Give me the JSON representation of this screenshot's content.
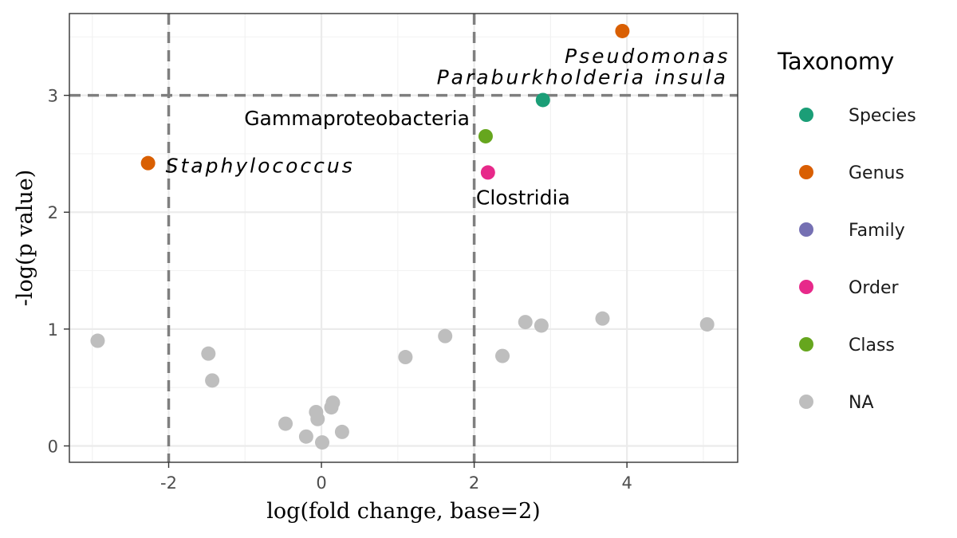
{
  "chart_data": {
    "type": "scatter",
    "title": "",
    "xlabel": "log(fold change, base=2)",
    "ylabel": "-log(p value)",
    "xlim": [
      -3.3,
      5.45
    ],
    "ylim": [
      -0.14,
      3.7
    ],
    "x_ticks": [
      -2,
      0,
      2,
      4
    ],
    "y_ticks": [
      0,
      1,
      2,
      3
    ],
    "grid": true,
    "thresholds": {
      "x": [
        -2,
        2
      ],
      "y": [
        3
      ]
    },
    "legend": {
      "title": "Taxonomy",
      "position": "right",
      "entries": [
        {
          "label": "Species",
          "color": "#1b9e77"
        },
        {
          "label": "Genus",
          "color": "#d95f02"
        },
        {
          "label": "Family",
          "color": "#7570b3"
        },
        {
          "label": "Order",
          "color": "#e7298a"
        },
        {
          "label": "Class",
          "color": "#66a61e"
        },
        {
          "label": "NA",
          "color": "#bebebe"
        }
      ]
    },
    "points": [
      {
        "x": 3.94,
        "y": 3.55,
        "group": "Genus",
        "label": "Pseudomonas",
        "italic": true,
        "label_anchor": "end",
        "dx": 135,
        "dy": 40
      },
      {
        "x": 2.9,
        "y": 2.96,
        "group": "Species",
        "label": "Paraburkholderia insula",
        "italic": true,
        "label_anchor": "end",
        "dx": 232,
        "dy": -20
      },
      {
        "x": 2.15,
        "y": 2.65,
        "group": "Class",
        "label": "Gammaproteobacteria",
        "italic": false,
        "label_anchor": "end",
        "dx": -20,
        "dy": -14
      },
      {
        "x": 2.18,
        "y": 2.34,
        "group": "Order",
        "label": "Clostridia",
        "italic": false,
        "label_anchor": "middle",
        "dx": 44,
        "dy": 40
      },
      {
        "x": -2.27,
        "y": 2.42,
        "group": "Genus",
        "label": "Staphylococcus",
        "italic": true,
        "label_anchor": "start",
        "dx": 22,
        "dy": 12
      },
      {
        "x": -2.93,
        "y": 0.9,
        "group": "NA"
      },
      {
        "x": -1.48,
        "y": 0.79,
        "group": "NA"
      },
      {
        "x": -1.43,
        "y": 0.56,
        "group": "NA"
      },
      {
        "x": -0.47,
        "y": 0.19,
        "group": "NA"
      },
      {
        "x": -0.2,
        "y": 0.08,
        "group": "NA"
      },
      {
        "x": -0.07,
        "y": 0.29,
        "group": "NA"
      },
      {
        "x": -0.05,
        "y": 0.23,
        "group": "NA"
      },
      {
        "x": 0.01,
        "y": 0.03,
        "group": "NA"
      },
      {
        "x": 0.13,
        "y": 0.33,
        "group": "NA"
      },
      {
        "x": 0.15,
        "y": 0.37,
        "group": "NA"
      },
      {
        "x": 0.27,
        "y": 0.12,
        "group": "NA"
      },
      {
        "x": 1.1,
        "y": 0.76,
        "group": "NA"
      },
      {
        "x": 1.62,
        "y": 0.94,
        "group": "NA"
      },
      {
        "x": 2.37,
        "y": 0.77,
        "group": "NA"
      },
      {
        "x": 2.67,
        "y": 1.06,
        "group": "NA"
      },
      {
        "x": 2.88,
        "y": 1.03,
        "group": "NA"
      },
      {
        "x": 3.68,
        "y": 1.09,
        "group": "NA"
      },
      {
        "x": 5.05,
        "y": 1.04,
        "group": "NA"
      }
    ]
  }
}
